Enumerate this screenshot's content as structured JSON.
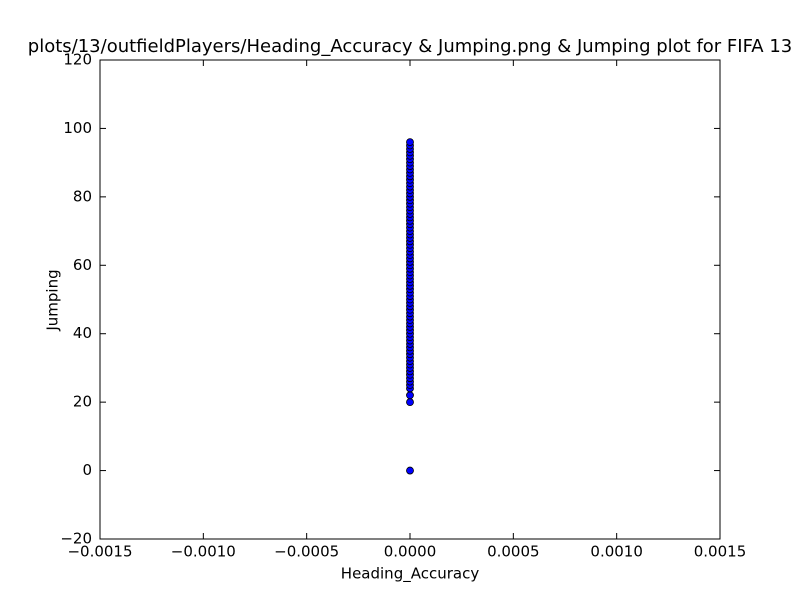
{
  "chart_data": {
    "type": "scatter",
    "title": "plots/13/outfieldPlayers/Heading_Accuracy & Jumping.png & Jumping plot for FIFA 13",
    "x_label": "Heading_Accuracy",
    "y_label": "Jumping",
    "x": [
      0,
      0,
      0,
      0,
      0,
      0,
      0,
      0,
      0,
      0,
      0,
      0,
      0,
      0,
      0,
      0,
      0,
      0,
      0,
      0,
      0,
      0,
      0,
      0,
      0,
      0,
      0,
      0,
      0,
      0,
      0,
      0,
      0,
      0,
      0,
      0,
      0,
      0,
      0,
      0,
      0,
      0,
      0,
      0,
      0,
      0,
      0,
      0,
      0,
      0,
      0,
      0,
      0,
      0,
      0,
      0,
      0,
      0,
      0,
      0,
      0,
      0,
      0,
      0,
      0,
      0,
      0,
      0,
      0,
      0,
      0,
      0,
      0,
      0,
      0,
      0
    ],
    "values": [
      0,
      20,
      22,
      24,
      25,
      26,
      27,
      28,
      29,
      30,
      31,
      32,
      33,
      34,
      35,
      36,
      37,
      38,
      39,
      40,
      41,
      42,
      43,
      44,
      45,
      46,
      47,
      48,
      49,
      50,
      51,
      52,
      53,
      54,
      55,
      56,
      57,
      58,
      59,
      60,
      61,
      62,
      63,
      64,
      65,
      66,
      67,
      68,
      69,
      70,
      71,
      72,
      73,
      74,
      75,
      76,
      77,
      78,
      79,
      80,
      81,
      82,
      83,
      84,
      85,
      86,
      87,
      88,
      89,
      90,
      91,
      92,
      93,
      94,
      95,
      96
    ],
    "color": "#0000ff",
    "xlim": [
      -0.0015,
      0.0015
    ],
    "xticks": [
      {
        "value": -0.0015,
        "label": "−0.0015"
      },
      {
        "value": -0.001,
        "label": "−0.0010"
      },
      {
        "value": -0.0005,
        "label": "−0.0005"
      },
      {
        "value": 0,
        "label": "0.0000"
      },
      0.0005,
      {
        "value": 0.001,
        "label": "0.0010"
      },
      0.0015
    ],
    "ylim": [
      -20,
      120
    ],
    "yticks": [
      {
        "value": -20,
        "label": "−20"
      },
      0,
      20,
      40,
      60,
      80,
      100,
      120
    ],
    "grid": false
  }
}
